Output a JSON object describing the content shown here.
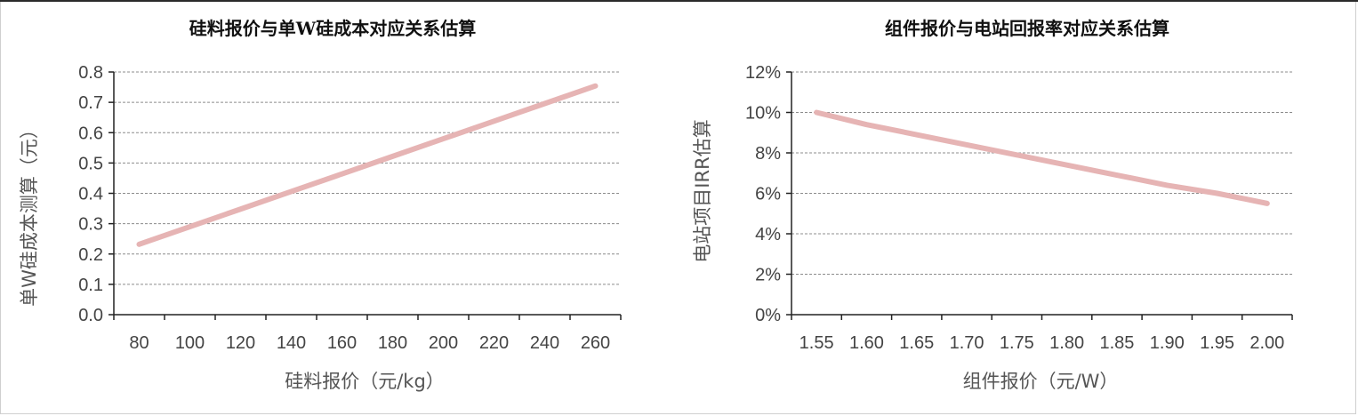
{
  "chart_data": [
    {
      "type": "line",
      "title": "硅料报价与单W硅成本对应关系估算",
      "xlabel": "硅料报价（元/kg）",
      "ylabel": "单W硅成本测算（元）",
      "x_ticks": [
        "80",
        "100",
        "120",
        "140",
        "160",
        "180",
        "200",
        "220",
        "240",
        "260"
      ],
      "y_ticks": [
        "0.0",
        "0.1",
        "0.2",
        "0.3",
        "0.4",
        "0.5",
        "0.6",
        "0.7",
        "0.8"
      ],
      "xlim": [
        70,
        270
      ],
      "ylim": [
        0,
        0.8
      ],
      "grid": true,
      "series": [
        {
          "color": "#e6b4b4",
          "x": [
            80,
            100,
            120,
            140,
            160,
            180,
            200,
            220,
            240,
            260
          ],
          "y": [
            0.232,
            0.29,
            0.348,
            0.406,
            0.464,
            0.522,
            0.58,
            0.638,
            0.696,
            0.754
          ]
        }
      ]
    },
    {
      "type": "line",
      "title": "组件报价与电站回报率对应关系估算",
      "xlabel": "组件报价（元/W）",
      "ylabel": "电站项目IRR估算",
      "x_ticks": [
        "1.55",
        "1.60",
        "1.65",
        "1.70",
        "1.75",
        "1.80",
        "1.85",
        "1.90",
        "1.95",
        "2.00"
      ],
      "y_ticks": [
        "0%",
        "2%",
        "4%",
        "6%",
        "8%",
        "10%",
        "12%"
      ],
      "xlim": [
        1.525,
        2.025
      ],
      "ylim": [
        0,
        12
      ],
      "grid": true,
      "series": [
        {
          "color": "#e6b4b4",
          "x": [
            1.55,
            1.6,
            1.65,
            1.7,
            1.75,
            1.8,
            1.85,
            1.9,
            1.95,
            2.0
          ],
          "y": [
            10.0,
            9.4,
            8.9,
            8.4,
            7.9,
            7.4,
            6.9,
            6.4,
            6.0,
            5.5
          ]
        }
      ]
    }
  ]
}
